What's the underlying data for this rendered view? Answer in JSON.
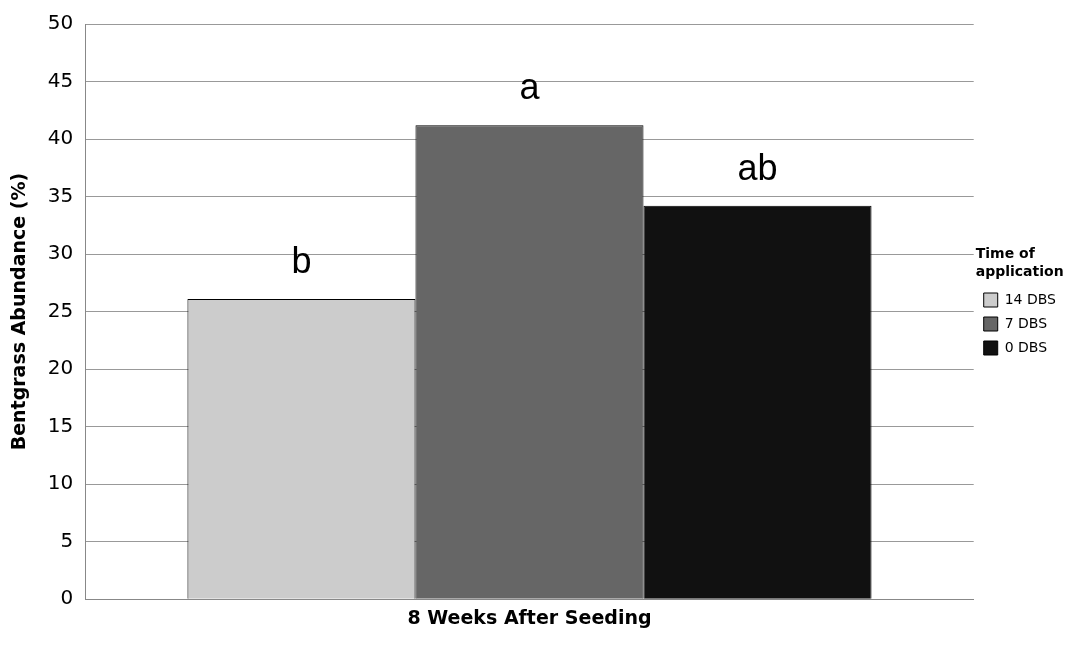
{
  "chart_data": {
    "type": "bar",
    "ylabel": "Bentgrass Abundance (%)",
    "legend_title": "Time of application",
    "categories": [
      "8 Weeks After Seeding"
    ],
    "series": [
      {
        "name": "14 DBS",
        "color": "#cccccc",
        "values": [
          26.1
        ]
      },
      {
        "name": "7 DBS",
        "color": "#666666",
        "values": [
          41.2
        ]
      },
      {
        "name": "0 DBS",
        "color": "#111111",
        "values": [
          34.2
        ]
      }
    ],
    "annotations": [
      "b",
      "a",
      "ab"
    ],
    "ylim": [
      0,
      50
    ],
    "yticks": [
      0,
      5,
      10,
      15,
      20,
      25,
      30,
      35,
      40,
      45,
      50
    ],
    "grid": "y",
    "legend": "right"
  }
}
